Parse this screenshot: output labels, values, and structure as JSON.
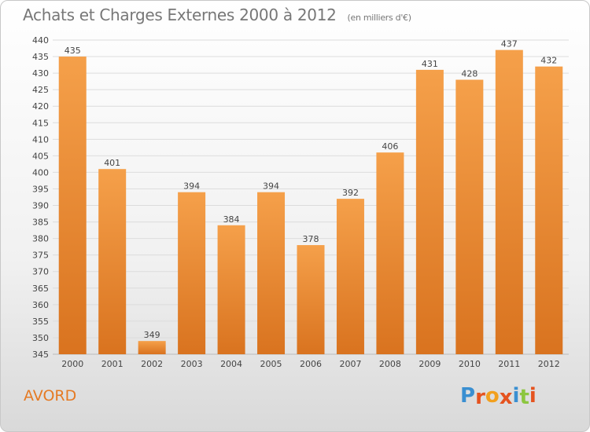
{
  "header": {
    "title": "Achats et Charges Externes 2000 à 2012",
    "subtitle": "(en milliers d'€)"
  },
  "footer": {
    "place": "AVORD",
    "logo": {
      "text": "Proxiti",
      "colors": [
        "#3a8fd1",
        "#e5531f",
        "#f2a01e",
        "#e5531f",
        "#3a8fd1",
        "#8cc63f",
        "#e5531f"
      ]
    }
  },
  "chart_data": {
    "type": "bar",
    "categories": [
      "2000",
      "2001",
      "2002",
      "2003",
      "2004",
      "2005",
      "2006",
      "2007",
      "2008",
      "2009",
      "2010",
      "2011",
      "2012"
    ],
    "values": [
      435,
      401,
      349,
      394,
      384,
      394,
      378,
      392,
      406,
      431,
      428,
      437,
      432
    ],
    "ylim": [
      345,
      440
    ],
    "yticks": [
      345,
      350,
      355,
      360,
      365,
      370,
      375,
      380,
      385,
      390,
      395,
      400,
      405,
      410,
      415,
      420,
      425,
      430,
      435,
      440
    ],
    "grid": true,
    "bar_color": "#f5a04a",
    "bar_color_dark": "#d9731f"
  }
}
